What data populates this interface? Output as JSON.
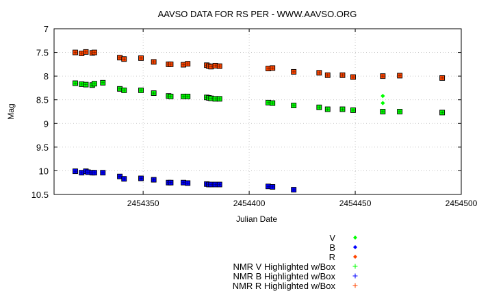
{
  "chart_data": {
    "type": "scatter",
    "title": "AAVSO DATA FOR RS PER - WWW.AAVSO.ORG",
    "xlabel": "Julian Date",
    "ylabel": "Mag",
    "xlim": [
      2454308,
      2454500
    ],
    "ylim": [
      10.5,
      7
    ],
    "y_inverted": true,
    "grid": true,
    "legend_position": "bottom-right",
    "xticks": [
      2454350,
      2454400,
      2454450,
      2454500
    ],
    "xtick_labels": [
      "2454350",
      "2454400",
      "2454450",
      "2454500"
    ],
    "yticks": [
      7,
      7.5,
      8,
      8.5,
      9,
      9.5,
      10,
      10.5
    ],
    "ytick_labels": [
      "7",
      "7.5",
      "8",
      "8.5",
      "9",
      "9.5",
      "10",
      "10.5"
    ],
    "series": [
      {
        "name": "V",
        "color": "#00ff00",
        "marker": "diamond",
        "points": [
          [
            2454463,
            8.42
          ],
          [
            2454463,
            8.57
          ]
        ]
      },
      {
        "name": "B",
        "color": "#0000ff",
        "marker": "diamond",
        "points": []
      },
      {
        "name": "R",
        "color": "#ff4500",
        "marker": "diamond",
        "points": []
      },
      {
        "name": "NMR V Highlighted w/Box",
        "color": "#00ff00",
        "marker": "box",
        "points": [
          [
            2454318,
            8.15
          ],
          [
            2454321,
            8.17
          ],
          [
            2454323,
            8.18
          ],
          [
            2454326,
            8.19
          ],
          [
            2454327,
            8.16
          ],
          [
            2454331,
            8.14
          ],
          [
            2454339,
            8.27
          ],
          [
            2454341,
            8.3
          ],
          [
            2454349,
            8.3
          ],
          [
            2454355,
            8.36
          ],
          [
            2454362,
            8.42
          ],
          [
            2454363,
            8.43
          ],
          [
            2454369,
            8.43
          ],
          [
            2454371,
            8.43
          ],
          [
            2454380,
            8.45
          ],
          [
            2454381,
            8.46
          ],
          [
            2454382,
            8.47
          ],
          [
            2454384,
            8.48
          ],
          [
            2454386,
            8.48
          ],
          [
            2454409,
            8.56
          ],
          [
            2454411,
            8.57
          ],
          [
            2454421,
            8.62
          ],
          [
            2454433,
            8.66
          ],
          [
            2454437,
            8.7
          ],
          [
            2454444,
            8.7
          ],
          [
            2454449,
            8.72
          ],
          [
            2454463,
            8.75
          ],
          [
            2454471,
            8.75
          ],
          [
            2454491,
            8.77
          ]
        ]
      },
      {
        "name": "NMR B Highlighted w/Box",
        "color": "#0000ff",
        "marker": "box",
        "points": [
          [
            2454318,
            10.01
          ],
          [
            2454321,
            10.04
          ],
          [
            2454323,
            10.01
          ],
          [
            2454324,
            10.03
          ],
          [
            2454326,
            10.04
          ],
          [
            2454327,
            10.04
          ],
          [
            2454331,
            10.04
          ],
          [
            2454339,
            10.12
          ],
          [
            2454341,
            10.17
          ],
          [
            2454349,
            10.16
          ],
          [
            2454355,
            10.19
          ],
          [
            2454362,
            10.25
          ],
          [
            2454363,
            10.25
          ],
          [
            2454369,
            10.25
          ],
          [
            2454371,
            10.26
          ],
          [
            2454380,
            10.28
          ],
          [
            2454381,
            10.29
          ],
          [
            2454382,
            10.29
          ],
          [
            2454384,
            10.29
          ],
          [
            2454386,
            10.29
          ],
          [
            2454409,
            10.33
          ],
          [
            2454411,
            10.34
          ],
          [
            2454421,
            10.4
          ]
        ]
      },
      {
        "name": "NMR R Highlighted w/Box",
        "color": "#ff4500",
        "marker": "box",
        "points": [
          [
            2454318,
            7.5
          ],
          [
            2454321,
            7.52
          ],
          [
            2454323,
            7.49
          ],
          [
            2454326,
            7.51
          ],
          [
            2454327,
            7.5
          ],
          [
            2454339,
            7.61
          ],
          [
            2454341,
            7.64
          ],
          [
            2454349,
            7.62
          ],
          [
            2454355,
            7.7
          ],
          [
            2454362,
            7.75
          ],
          [
            2454363,
            7.75
          ],
          [
            2454369,
            7.76
          ],
          [
            2454371,
            7.74
          ],
          [
            2454380,
            7.77
          ],
          [
            2454381,
            7.79
          ],
          [
            2454382,
            7.8
          ],
          [
            2454384,
            7.78
          ],
          [
            2454386,
            7.79
          ],
          [
            2454409,
            7.84
          ],
          [
            2454411,
            7.83
          ],
          [
            2454421,
            7.91
          ],
          [
            2454433,
            7.93
          ],
          [
            2454437,
            7.98
          ],
          [
            2454444,
            7.98
          ],
          [
            2454449,
            8.02
          ],
          [
            2454463,
            8.0
          ],
          [
            2454471,
            7.99
          ],
          [
            2454491,
            8.04
          ]
        ]
      }
    ]
  }
}
